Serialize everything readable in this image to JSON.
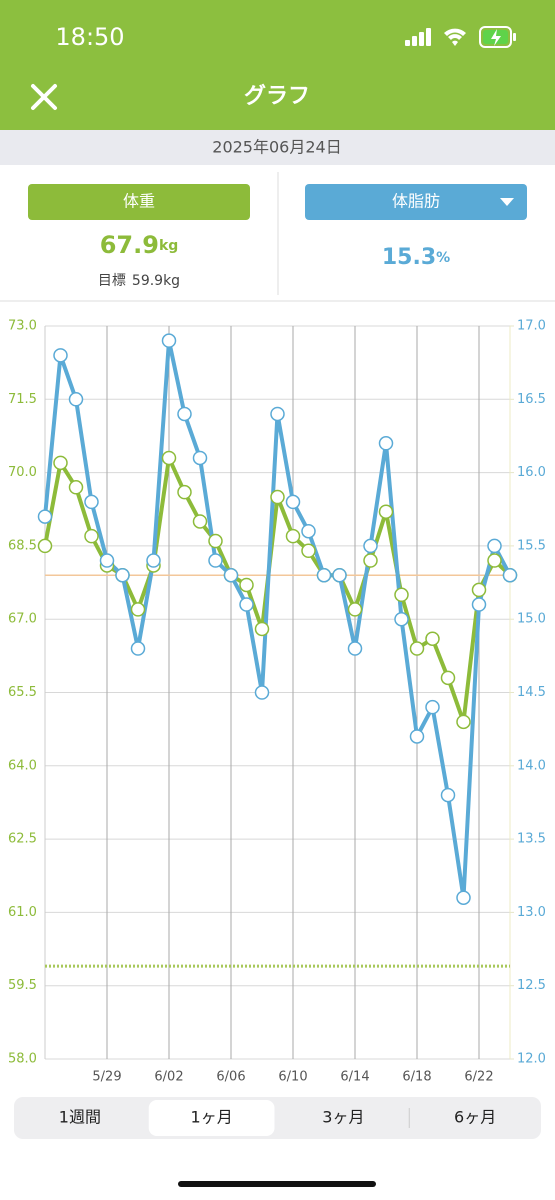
{
  "status": {
    "time": "18:50"
  },
  "header": {
    "title": "グラフ"
  },
  "date": "2025年06月24日",
  "weight": {
    "value": 67.9,
    "unit": "kg",
    "goal_label": "目標",
    "goal": 59.9,
    "goal_unit": "kg"
  },
  "body_fat": {
    "value": 15.3,
    "unit": "%"
  },
  "tabs": [
    "1週間",
    "1ヶ月",
    "3ヶ月",
    "6ヶ月"
  ],
  "selected_tab": "1ヶ月",
  "chart_data": {
    "type": "line",
    "categories": [
      null,
      null,
      null,
      null,
      "5/29",
      null,
      null,
      null,
      "6/02",
      null,
      null,
      null,
      "6/06",
      null,
      null,
      null,
      "6/10",
      null,
      null,
      null,
      "6/14",
      null,
      null,
      null,
      "6/18",
      null,
      null,
      null,
      "6/22",
      null,
      null
    ],
    "series": [
      {
        "name": "体重",
        "color": "#8dbb3a",
        "axis": "y",
        "values": [
          68.5,
          70.2,
          69.7,
          68.7,
          68.1,
          67.9,
          67.2,
          68.1,
          70.3,
          69.6,
          69.0,
          68.6,
          67.9,
          67.7,
          66.8,
          69.5,
          68.7,
          68.4,
          67.9,
          67.9,
          67.2,
          68.2,
          69.2,
          67.5,
          66.4,
          66.6,
          65.8,
          64.9,
          67.6,
          68.2,
          67.9
        ]
      },
      {
        "name": "体脂肪",
        "color": "#5aaad6",
        "axis": "y2",
        "values": [
          15.7,
          16.8,
          16.5,
          15.8,
          15.4,
          15.3,
          14.8,
          15.4,
          16.9,
          16.4,
          16.1,
          15.4,
          15.3,
          15.1,
          14.5,
          16.4,
          15.8,
          15.6,
          15.3,
          15.3,
          14.8,
          15.5,
          16.2,
          15.0,
          14.2,
          14.4,
          13.8,
          13.1,
          15.1,
          15.5,
          15.3
        ]
      }
    ],
    "ylim": [
      58,
      73
    ],
    "yticks": [
      {
        "value": 58,
        "label": "58.0"
      },
      59.5,
      {
        "value": 61,
        "label": "61.0"
      },
      62.5,
      {
        "value": 64,
        "label": "64.0"
      },
      65.5,
      {
        "value": 67,
        "label": "67.0"
      },
      68.5,
      {
        "value": 70,
        "label": "70.0"
      },
      71.5,
      {
        "value": 73,
        "label": "73.0"
      }
    ],
    "y2lim": [
      12,
      17
    ],
    "y2ticks": [
      {
        "value": 12,
        "label": "12.0"
      },
      12.5,
      {
        "value": 13,
        "label": "13.0"
      },
      13.5,
      {
        "value": 14,
        "label": "14.0"
      },
      14.5,
      {
        "value": 15,
        "label": "15.0"
      },
      15.5,
      {
        "value": 16,
        "label": "16.0"
      },
      16.5,
      {
        "value": 17,
        "label": "17.0"
      }
    ],
    "grid": true
  }
}
